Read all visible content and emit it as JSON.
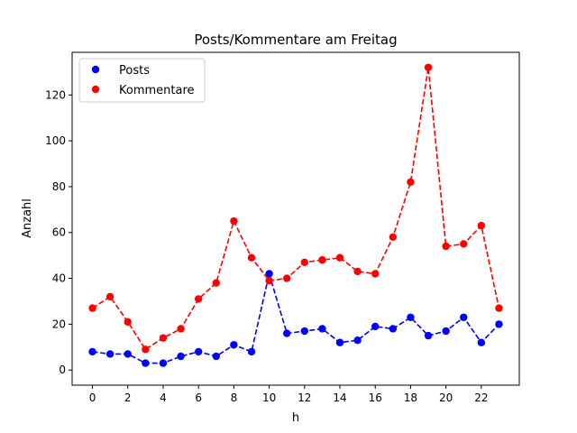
{
  "chart_data": {
    "type": "line",
    "title": "Posts/Kommentare am Freitag",
    "xlabel": "h",
    "ylabel": "Anzahl",
    "x": [
      0,
      1,
      2,
      3,
      4,
      5,
      6,
      7,
      8,
      9,
      10,
      11,
      12,
      13,
      14,
      15,
      16,
      17,
      18,
      19,
      20,
      21,
      22,
      23
    ],
    "xlim": [
      -1.15,
      24.15
    ],
    "ylim": [
      -6.6,
      138.6
    ],
    "xticks": [
      0,
      2,
      4,
      6,
      8,
      10,
      12,
      14,
      16,
      18,
      20,
      22
    ],
    "yticks": [
      0,
      20,
      40,
      60,
      80,
      100,
      120
    ],
    "grid": false,
    "legend_position": "top-left",
    "series": [
      {
        "name": "Posts",
        "color": "#0000ff",
        "values": [
          8,
          7,
          7,
          3,
          3,
          6,
          8,
          6,
          11,
          8,
          42,
          16,
          17,
          18,
          12,
          13,
          19,
          18,
          23,
          15,
          17,
          23,
          12,
          20
        ]
      },
      {
        "name": "Kommentare",
        "color": "#ff0000",
        "values": [
          27,
          32,
          21,
          9,
          14,
          18,
          31,
          38,
          65,
          49,
          39,
          40,
          47,
          48,
          49,
          43,
          42,
          58,
          82,
          132,
          54,
          55,
          63,
          27
        ]
      }
    ]
  }
}
